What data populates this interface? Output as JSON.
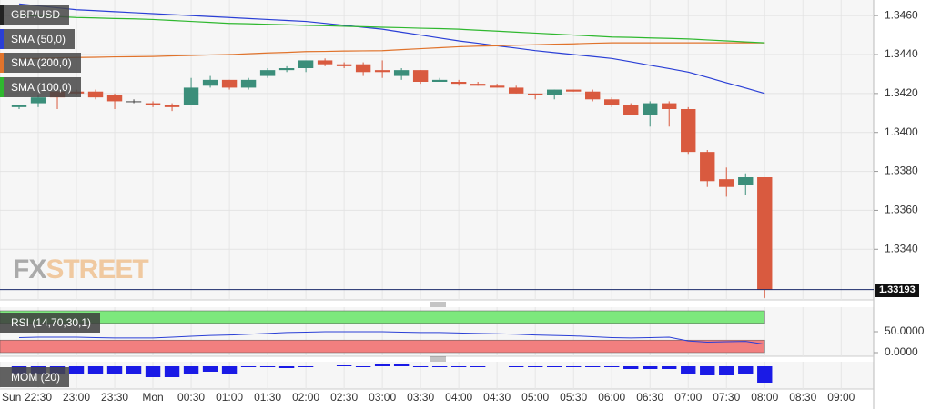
{
  "chart_data": [
    {
      "type": "candlestick",
      "ylim": [
        1.3314,
        1.3468
      ],
      "yticks": [
        {
          "value": 1.334,
          "label": "1.3340"
        },
        {
          "value": 1.336,
          "label": "1.3360"
        },
        {
          "value": 1.338,
          "label": "1.3380"
        },
        {
          "value": 1.34,
          "label": "1.3400"
        },
        {
          "value": 1.342,
          "label": "1.3420"
        },
        {
          "value": 1.344,
          "label": "1.3440"
        },
        {
          "value": 1.346,
          "label": "1.3460"
        }
      ],
      "xlim": [
        -1,
        44.7
      ],
      "xticks": [
        {
          "value": -1,
          "label": "Sun"
        },
        {
          "value": 1,
          "label": "22:30"
        },
        {
          "value": 3,
          "label": "23:00"
        },
        {
          "value": 5,
          "label": "23:30"
        },
        {
          "value": 7,
          "label": "Mon"
        },
        {
          "value": 9,
          "label": "00:30"
        },
        {
          "value": 11,
          "label": "01:00"
        },
        {
          "value": 13,
          "label": "01:30"
        },
        {
          "value": 15,
          "label": "02:00"
        },
        {
          "value": 17,
          "label": "02:30"
        },
        {
          "value": 19,
          "label": "03:00"
        },
        {
          "value": 21,
          "label": "03:30"
        },
        {
          "value": 23,
          "label": "04:00"
        },
        {
          "value": 25,
          "label": "04:30"
        },
        {
          "value": 27,
          "label": "05:00"
        },
        {
          "value": 29,
          "label": "05:30"
        },
        {
          "value": 31,
          "label": "06:00"
        },
        {
          "value": 33,
          "label": "06:30"
        },
        {
          "value": 35,
          "label": "07:00"
        },
        {
          "value": 37,
          "label": "07:30"
        },
        {
          "value": 39,
          "label": "08:00"
        },
        {
          "value": 41,
          "label": "08:30"
        },
        {
          "value": 43,
          "label": "09:00"
        }
      ],
      "grid": true,
      "watermark": [
        "FX",
        "STREET"
      ],
      "last_price": 1.33193,
      "series": [
        {
          "name": "GBP/USD",
          "color": "#444444",
          "up_color": "#3b8e7a",
          "down_color": "#d95a3f",
          "open": [
            1.3413,
            1.3415,
            1.3421,
            1.3421,
            1.3421,
            1.3419,
            1.3416,
            1.3415,
            1.3414,
            1.3414,
            1.3424,
            1.3427,
            1.3423,
            1.3429,
            1.3432,
            1.3433,
            1.3437,
            1.3435,
            1.3435,
            1.3432,
            1.3429,
            1.3432,
            1.3426,
            1.3426,
            1.3425,
            1.3424,
            1.3423,
            1.342,
            1.3419,
            1.3422,
            1.3421,
            1.3417,
            1.3414,
            1.3409,
            1.3415,
            1.3412,
            1.339,
            1.3376,
            1.3373,
            1.3377
          ],
          "high": [
            1.3414,
            1.3419,
            1.3422,
            1.3422,
            1.3422,
            1.342,
            1.3417,
            1.3416,
            1.3415,
            1.3428,
            1.3429,
            1.3427,
            1.3428,
            1.3433,
            1.3434,
            1.3437,
            1.3438,
            1.3436,
            1.3436,
            1.3437,
            1.3433,
            1.3432,
            1.3428,
            1.3427,
            1.3426,
            1.3425,
            1.3424,
            1.342,
            1.3422,
            1.3422,
            1.3422,
            1.3418,
            1.3415,
            1.3416,
            1.3416,
            1.3413,
            1.3391,
            1.3382,
            1.3379,
            1.3377
          ],
          "low": [
            1.3412,
            1.3413,
            1.3412,
            1.3419,
            1.3417,
            1.3412,
            1.3415,
            1.3413,
            1.3411,
            1.3414,
            1.3423,
            1.3422,
            1.3422,
            1.3428,
            1.3431,
            1.3431,
            1.3434,
            1.3433,
            1.3429,
            1.3428,
            1.3427,
            1.3425,
            1.3426,
            1.3424,
            1.3424,
            1.3423,
            1.342,
            1.3417,
            1.3417,
            1.3421,
            1.3416,
            1.3413,
            1.3409,
            1.3403,
            1.3403,
            1.3389,
            1.3372,
            1.3367,
            1.3368,
            1.3315
          ],
          "close": [
            1.3414,
            1.3418,
            1.3418,
            1.342,
            1.3418,
            1.3416,
            1.3416,
            1.3414,
            1.3413,
            1.3423,
            1.3427,
            1.3423,
            1.3427,
            1.3432,
            1.3433,
            1.3437,
            1.3435,
            1.3434,
            1.3431,
            1.3431,
            1.3432,
            1.3426,
            1.3427,
            1.3425,
            1.3424,
            1.3423,
            1.342,
            1.3419,
            1.3422,
            1.3421,
            1.3417,
            1.3414,
            1.3409,
            1.3415,
            1.3412,
            1.339,
            1.3375,
            1.3372,
            1.3377,
            1.33193
          ]
        },
        {
          "name": "SMA (50,0)",
          "type": "line",
          "color": "#2a3fd6",
          "values": [
            1.3466,
            1.3465,
            1.3464,
            1.3463,
            1.34625,
            1.3462,
            1.34615,
            1.3461,
            1.34605,
            1.346,
            1.34595,
            1.3459,
            1.34585,
            1.3458,
            1.34575,
            1.3457,
            1.3456,
            1.3455,
            1.3454,
            1.3453,
            1.34515,
            1.345,
            1.34485,
            1.3447,
            1.34458,
            1.34445,
            1.34433,
            1.3442,
            1.3441,
            1.344,
            1.3439,
            1.3438,
            1.34363,
            1.34345,
            1.34328,
            1.3431,
            1.34283,
            1.34255,
            1.34228,
            1.342
          ]
        },
        {
          "name": "SMA (200,0)",
          "type": "line",
          "color": "#e0732c",
          "values": [
            1.3438,
            1.3438,
            1.34383,
            1.34385,
            1.34386,
            1.34388,
            1.34389,
            1.3439,
            1.34393,
            1.34395,
            1.34398,
            1.344,
            1.34404,
            1.34408,
            1.34411,
            1.34415,
            1.34416,
            1.34418,
            1.34419,
            1.3442,
            1.34425,
            1.3443,
            1.34435,
            1.3444,
            1.34443,
            1.34445,
            1.34448,
            1.3445,
            1.34453,
            1.34455,
            1.34458,
            1.3446,
            1.3446,
            1.3446,
            1.3446,
            1.3446,
            1.3446,
            1.3446,
            1.3446,
            1.3446
          ]
        },
        {
          "name": "SMA (100,0)",
          "type": "line",
          "color": "#2fb82f",
          "values": [
            1.346,
            1.34598,
            1.34595,
            1.3459,
            1.34588,
            1.34585,
            1.34583,
            1.3458,
            1.34575,
            1.3457,
            1.34565,
            1.3456,
            1.34558,
            1.34555,
            1.34553,
            1.3455,
            1.34548,
            1.34545,
            1.34543,
            1.3454,
            1.34538,
            1.34535,
            1.34533,
            1.3453,
            1.34525,
            1.3452,
            1.34515,
            1.3451,
            1.34505,
            1.345,
            1.34495,
            1.3449,
            1.34488,
            1.34485,
            1.34483,
            1.3448,
            1.34475,
            1.3447,
            1.34465,
            1.3446
          ]
        }
      ]
    },
    {
      "type": "line",
      "name": "RSI (14,70,30,1)",
      "color": "#2a3fd6",
      "ylim": [
        0,
        100
      ],
      "yticks": [
        {
          "value": 50,
          "label": "50.0000"
        },
        {
          "value": 0,
          "label": "0.0000"
        }
      ],
      "overbought": 70,
      "oversold": 30,
      "overbought_color": "#7de87d",
      "oversold_color": "#f27f7f",
      "values": [
        36,
        37,
        37,
        37,
        36,
        35,
        35,
        35,
        37,
        39,
        41,
        42,
        44,
        46,
        48,
        49,
        50,
        50,
        50,
        50,
        49,
        48,
        48,
        47,
        46,
        45,
        44,
        42,
        41,
        40,
        38,
        36,
        35,
        36,
        37,
        28,
        25,
        26,
        27,
        20
      ]
    },
    {
      "type": "bar",
      "name": "MOM (20)",
      "color": "#1a1ae6",
      "values": [
        -8,
        -8,
        -8,
        -8,
        -8,
        -8,
        -9,
        -12,
        -12,
        -8,
        -6,
        -8,
        -1,
        -1,
        -2,
        -1,
        0,
        1,
        -1,
        2,
        2,
        -1,
        -1,
        -1,
        -1,
        0,
        -1,
        -1,
        -1,
        -1,
        -1,
        -1,
        -3,
        -3,
        -3,
        -8,
        -10,
        -10,
        -9,
        -18
      ]
    }
  ]
}
